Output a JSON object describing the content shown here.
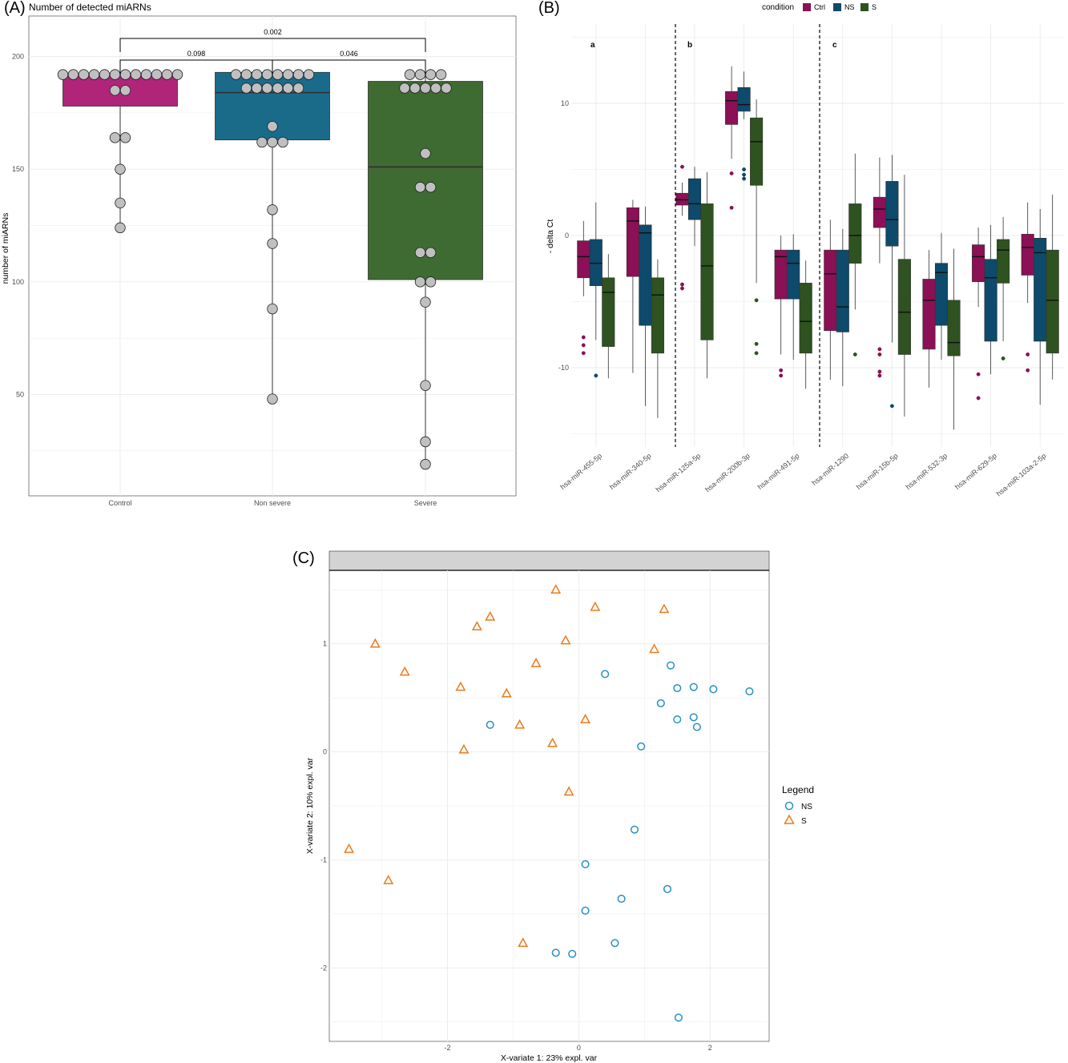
{
  "colors": {
    "ctrl": "#b0247a",
    "ns": "#1a6b8a",
    "s": "#3e6b32",
    "ctrlB": "#8b1055",
    "nsB": "#0d4a6b",
    "sB": "#2e5220",
    "grid": "#ebebeb",
    "point": "#c0c0c0",
    "nsPoint": "#2a8fc5",
    "sPoint": "#ec7a1c",
    "strip": "#d3d3d3"
  },
  "panelA": {
    "letter": "(A)",
    "title": "Number of detected miARNs",
    "ylabel": "number of miARNs",
    "yticks": [
      50,
      100,
      150,
      200
    ],
    "comparisons": [
      {
        "from": 0,
        "to": 2,
        "label": "0.002"
      },
      {
        "from": 0,
        "to": 1,
        "label": "0.098"
      },
      {
        "from": 1,
        "to": 2,
        "label": "0.046"
      }
    ]
  },
  "panelB": {
    "letter": "(B)",
    "legend_title": "condition",
    "legend_items": [
      "Ctrl",
      "NS",
      "S"
    ],
    "ylabel": "- delta Ct",
    "yticks": [
      10,
      0,
      -10
    ],
    "sections": [
      "a",
      "b",
      "c"
    ]
  },
  "panelC": {
    "letter": "(C)",
    "xlabel": "X-variate 1: 23% expl. var",
    "ylabel": "X-variate 2: 10% expl. var",
    "xticks": [
      -2,
      0,
      2
    ],
    "yticks": [
      1,
      0,
      -1,
      -2
    ],
    "legend_title": "Legend",
    "legend_items": [
      "NS",
      "S"
    ]
  },
  "chart_data": [
    {
      "type": "box",
      "title": "Number of detected miARNs",
      "ylabel": "number of miARNs",
      "categories": [
        "Control",
        "Non severe",
        "Severe"
      ],
      "ylim": [
        5,
        218
      ],
      "boxes": [
        {
          "q1": 178,
          "median": 192,
          "q3": 192,
          "lower": 124,
          "upper": 192
        },
        {
          "q1": 163,
          "median": 184,
          "q3": 193,
          "lower": 48,
          "upper": 193
        },
        {
          "q1": 101,
          "median": 151,
          "q3": 189,
          "lower": 19,
          "upper": 193
        }
      ],
      "points": [
        [
          192,
          192,
          192,
          192,
          192,
          192,
          192,
          192,
          192,
          192,
          192,
          192,
          185,
          185,
          164,
          164,
          150,
          135,
          124
        ],
        [
          192,
          192,
          192,
          192,
          192,
          192,
          192,
          192,
          186,
          186,
          186,
          186,
          186,
          186,
          169,
          162,
          162,
          162,
          132,
          117,
          88,
          48
        ],
        [
          192,
          192,
          192,
          192,
          186,
          186,
          186,
          186,
          186,
          157,
          142,
          142,
          113,
          113,
          100,
          100,
          91,
          54,
          29,
          19
        ]
      ]
    },
    {
      "type": "box",
      "ylabel": "- delta Ct",
      "categories": [
        "hsa-miR-455-5p",
        "hsa-miR-340-5p",
        "hsa-miR-125a-5p",
        "hsa-miR-200b-3p",
        "hsa-miR-491-5p",
        "hsa-miR-1290",
        "hsa-miR-15b-5p",
        "hsa-miR-532-3p",
        "hsa-miR-629-5p",
        "hsa-miR-103a-2-5p"
      ],
      "series_names": [
        "Ctrl",
        "NS",
        "S"
      ],
      "ylim": [
        -16,
        16
      ],
      "boxes": [
        [
          {
            "q1": -3.2,
            "median": -1.6,
            "q3": -0.4,
            "lower": -4.6,
            "upper": 1.1,
            "outliers": [
              -7.7,
              -8.3,
              -8.9
            ]
          },
          {
            "q1": -3.8,
            "median": -2.1,
            "q3": -0.3,
            "lower": -7.9,
            "upper": 2.5,
            "outliers": [
              -10.6
            ]
          },
          {
            "q1": -8.4,
            "median": -4.3,
            "q3": -3.2,
            "lower": -10.8,
            "upper": -1.4,
            "outliers": []
          }
        ],
        [
          {
            "q1": -3.1,
            "median": 1.1,
            "q3": 2.1,
            "lower": -10.4,
            "upper": 2.7,
            "outliers": []
          },
          {
            "q1": -6.8,
            "median": 0.2,
            "q3": 0.8,
            "lower": -12.9,
            "upper": 2.2,
            "outliers": []
          },
          {
            "q1": -8.9,
            "median": -4.5,
            "q3": -3.2,
            "lower": -13.8,
            "upper": -1.8,
            "outliers": []
          }
        ],
        [
          {
            "q1": 2.3,
            "median": 2.7,
            "q3": 3.2,
            "lower": 1.5,
            "upper": 4.0,
            "outliers": [
              5.2,
              -3.7,
              -4.0
            ]
          },
          {
            "q1": 1.2,
            "median": 2.4,
            "q3": 4.3,
            "lower": -0.8,
            "upper": 5.2,
            "outliers": []
          },
          {
            "q1": -7.9,
            "median": -2.3,
            "q3": 2.4,
            "lower": -10.8,
            "upper": 4.8,
            "outliers": []
          }
        ],
        [
          {
            "q1": 8.4,
            "median": 10.2,
            "q3": 10.9,
            "lower": 5.8,
            "upper": 12.8,
            "outliers": [
              4.7,
              2.1
            ]
          },
          {
            "q1": 9.4,
            "median": 9.9,
            "q3": 11.2,
            "lower": 8.8,
            "upper": 12.4,
            "outliers": [
              5.0,
              4.6,
              4.3
            ]
          },
          {
            "q1": 3.8,
            "median": 7.1,
            "q3": 8.9,
            "lower": -3.6,
            "upper": 10.3,
            "outliers": [
              -4.9,
              -8.2,
              -8.9
            ]
          }
        ],
        [
          {
            "q1": -4.8,
            "median": -1.6,
            "q3": -1.1,
            "lower": -9.0,
            "upper": 0.0,
            "outliers": [
              -10.2,
              -10.6
            ]
          },
          {
            "q1": -4.8,
            "median": -2.1,
            "q3": -1.1,
            "lower": -9.4,
            "upper": 0.1,
            "outliers": []
          },
          {
            "q1": -8.9,
            "median": -6.5,
            "q3": -3.6,
            "lower": -11.6,
            "upper": -1.9,
            "outliers": []
          }
        ],
        [
          {
            "q1": -7.2,
            "median": -2.9,
            "q3": -1.1,
            "lower": -10.9,
            "upper": 1.2,
            "outliers": []
          },
          {
            "q1": -7.3,
            "median": -5.4,
            "q3": -1.1,
            "lower": -11.4,
            "upper": 0.5,
            "outliers": []
          },
          {
            "q1": -2.1,
            "median": 0.0,
            "q3": 2.4,
            "lower": -5.6,
            "upper": 6.2,
            "outliers": [
              -9.0
            ]
          }
        ],
        [
          {
            "q1": 0.6,
            "median": 2.0,
            "q3": 2.9,
            "lower": -2.1,
            "upper": 5.9,
            "outliers": [
              -8.6,
              -9.0,
              -10.3,
              -10.6
            ]
          },
          {
            "q1": -0.8,
            "median": 1.2,
            "q3": 4.1,
            "lower": -8.1,
            "upper": 6.1,
            "outliers": [
              -12.9
            ]
          },
          {
            "q1": -9.0,
            "median": -5.8,
            "q3": -1.8,
            "lower": -13.7,
            "upper": 4.6,
            "outliers": []
          }
        ],
        [
          {
            "q1": -8.6,
            "median": -4.9,
            "q3": -3.3,
            "lower": -11.5,
            "upper": -1.1,
            "outliers": []
          },
          {
            "q1": -6.8,
            "median": -2.8,
            "q3": -2.1,
            "lower": -9.4,
            "upper": 0.2,
            "outliers": []
          },
          {
            "q1": -9.1,
            "median": -8.1,
            "q3": -4.9,
            "lower": -14.7,
            "upper": -1.0,
            "outliers": []
          }
        ],
        [
          {
            "q1": -3.5,
            "median": -1.6,
            "q3": -0.7,
            "lower": -5.4,
            "upper": 0.6,
            "outliers": [
              -10.5,
              -12.3
            ]
          },
          {
            "q1": -8.0,
            "median": -3.2,
            "q3": -1.8,
            "lower": -10.5,
            "upper": 0.8,
            "outliers": []
          },
          {
            "q1": -3.6,
            "median": -1.1,
            "q3": -0.3,
            "lower": -8.0,
            "upper": 1.4,
            "outliers": [
              -9.3
            ]
          }
        ],
        [
          {
            "q1": -3.0,
            "median": -0.9,
            "q3": 0.1,
            "lower": -5.1,
            "upper": 2.5,
            "outliers": [
              -9.0,
              -10.2
            ]
          },
          {
            "q1": -8.0,
            "median": -1.3,
            "q3": -0.2,
            "lower": -12.8,
            "upper": 2.0,
            "outliers": []
          },
          {
            "q1": -8.9,
            "median": -4.9,
            "q3": -1.1,
            "lower": -10.9,
            "upper": 3.1,
            "outliers": []
          }
        ]
      ]
    },
    {
      "type": "scatter",
      "xlabel": "X-variate 1: 23% expl. var",
      "ylabel": "X-variate 2: 10% expl. var",
      "xlim": [
        -3.8,
        2.9
      ],
      "ylim": [
        -2.68,
        1.68
      ],
      "legend_title": "Legend",
      "series": [
        {
          "name": "NS",
          "shape": "circle",
          "points": [
            [
              0.4,
              0.72
            ],
            [
              1.4,
              0.8
            ],
            [
              1.5,
              0.59
            ],
            [
              1.75,
              0.6
            ],
            [
              2.05,
              0.58
            ],
            [
              2.6,
              0.56
            ],
            [
              1.25,
              0.45
            ],
            [
              1.75,
              0.32
            ],
            [
              1.5,
              0.3
            ],
            [
              1.8,
              0.23
            ],
            [
              -1.35,
              0.25
            ],
            [
              0.95,
              0.05
            ],
            [
              0.85,
              -0.72
            ],
            [
              0.1,
              -1.04
            ],
            [
              1.35,
              -1.27
            ],
            [
              0.65,
              -1.36
            ],
            [
              0.1,
              -1.47
            ],
            [
              0.55,
              -1.77
            ],
            [
              -0.35,
              -1.86
            ],
            [
              -0.1,
              -1.87
            ],
            [
              1.52,
              -2.46
            ]
          ]
        },
        {
          "name": "S",
          "shape": "triangle",
          "points": [
            [
              -0.35,
              1.5
            ],
            [
              0.25,
              1.34
            ],
            [
              1.3,
              1.32
            ],
            [
              -1.35,
              1.25
            ],
            [
              -1.55,
              1.16
            ],
            [
              -3.1,
              1.0
            ],
            [
              -0.2,
              1.03
            ],
            [
              1.15,
              0.95
            ],
            [
              -0.65,
              0.82
            ],
            [
              -2.65,
              0.74
            ],
            [
              -1.8,
              0.6
            ],
            [
              -1.1,
              0.54
            ],
            [
              0.1,
              0.3
            ],
            [
              -0.9,
              0.25
            ],
            [
              -0.4,
              0.08
            ],
            [
              -1.75,
              0.02
            ],
            [
              -0.15,
              -0.37
            ],
            [
              -3.5,
              -0.9
            ],
            [
              -2.9,
              -1.19
            ],
            [
              -0.85,
              -1.77
            ]
          ]
        }
      ]
    }
  ]
}
